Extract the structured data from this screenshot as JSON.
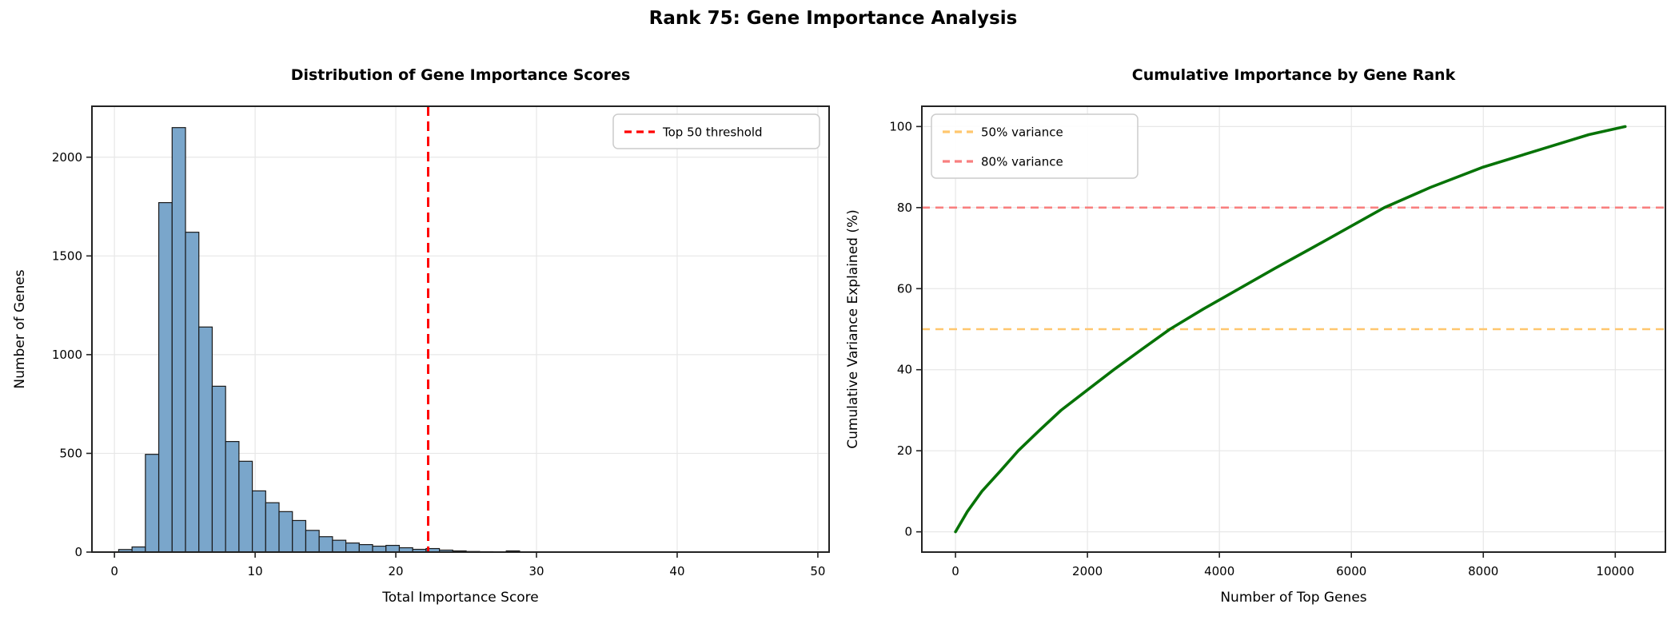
{
  "figure": {
    "title": "Rank 75: Gene Importance Analysis",
    "background": "#ffffff"
  },
  "colors": {
    "bar_fill": "#7aa6cb",
    "bar_edge": "#1a1a1a",
    "threshold_red": "#ff0000",
    "curve_green": "#077307",
    "line_50": "#ffc76e",
    "line_80": "#f87f7f",
    "grid": "#e7e7e7",
    "spine": "#222222",
    "legend_border": "#cccccc"
  },
  "chart_data": [
    {
      "type": "bar",
      "title": "Distribution of Gene Importance Scores",
      "xlabel": "Total Importance Score",
      "ylabel": "Number of Genes",
      "xlim": [
        -1.6,
        50.8
      ],
      "ylim": [
        0,
        2258
      ],
      "grid": true,
      "x_ticks": [
        0,
        10,
        20,
        30,
        40,
        50
      ],
      "x_tick_labels": [
        "0",
        "10",
        "20",
        "30",
        "40",
        "50"
      ],
      "y_ticks": [
        0,
        500,
        1000,
        1500,
        2000
      ],
      "y_tick_labels": [
        "0",
        "500",
        "1000",
        "1500",
        "2000"
      ],
      "bin_start": 0.3,
      "bin_width": 0.95,
      "counts": [
        13,
        26,
        495,
        1770,
        2150,
        1620,
        1140,
        840,
        560,
        460,
        310,
        250,
        205,
        160,
        110,
        78,
        60,
        46,
        38,
        30,
        34,
        22,
        14,
        18,
        10,
        6,
        3,
        2,
        0,
        6
      ],
      "threshold": {
        "x": 22.3,
        "label": "Top 50 threshold",
        "color": "#ff0000",
        "style": "dashed"
      },
      "legend": {
        "position": "top-right",
        "entries": [
          {
            "label": "Top 50 threshold",
            "color": "#ff0000",
            "dash": true
          }
        ]
      }
    },
    {
      "type": "line",
      "title": "Cumulative Importance by Gene Rank",
      "xlabel": "Number of Top Genes",
      "ylabel": "Cumulative Variance Explained (%)",
      "xlim": [
        -510,
        10760
      ],
      "ylim": [
        -5,
        105
      ],
      "grid": true,
      "x_ticks": [
        0,
        2000,
        4000,
        6000,
        8000,
        10000
      ],
      "x_tick_labels": [
        "0",
        "2000",
        "4000",
        "6000",
        "8000",
        "10000"
      ],
      "y_ticks": [
        0,
        20,
        40,
        60,
        80,
        100
      ],
      "y_tick_labels": [
        "0",
        "20",
        "40",
        "60",
        "80",
        "100"
      ],
      "series": [
        {
          "name": "cumulative-variance",
          "color": "#077307",
          "x": [
            0,
            180,
            400,
            680,
            950,
            1270,
            1600,
            2000,
            2400,
            2820,
            3250,
            3760,
            4300,
            4840,
            5400,
            5950,
            6500,
            7200,
            8000,
            9000,
            9600,
            10150
          ],
          "y": [
            0,
            5,
            10,
            15,
            20,
            25,
            30,
            35,
            40,
            45,
            50,
            55,
            60,
            65,
            70,
            75,
            80,
            85,
            90,
            95,
            98,
            100
          ]
        }
      ],
      "hlines": [
        {
          "y": 50,
          "label": "50% variance",
          "color": "#ffc76e"
        },
        {
          "y": 80,
          "label": "80% variance",
          "color": "#f87f7f"
        }
      ],
      "legend": {
        "position": "top-left",
        "entries": [
          {
            "label": "50% variance",
            "color": "#ffc76e",
            "dash": true
          },
          {
            "label": "80% variance",
            "color": "#f87f7f",
            "dash": true
          }
        ]
      }
    }
  ]
}
